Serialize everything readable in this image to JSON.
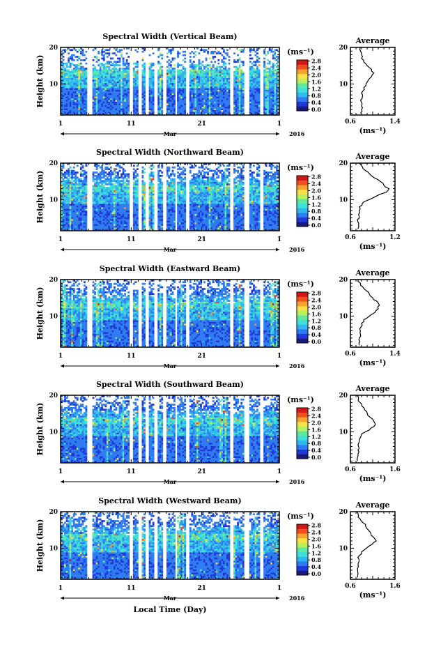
{
  "figure": {
    "xlabel": "Local Time (Day)",
    "colorbar_unit": "(ms⁻¹)",
    "colorbar_ticks": [
      "0.0",
      "0.4",
      "0.8",
      "1.2",
      "1.6",
      "2.0",
      "2.4",
      "2.8"
    ],
    "colorbar_colors": [
      "#1a1a7a",
      "#2038d8",
      "#2f7cf0",
      "#30b8f0",
      "#40e0d8",
      "#60e8a0",
      "#b8f060",
      "#f8e048",
      "#f8a030",
      "#f05020",
      "#d01818"
    ],
    "main_y_ticks": [
      "10",
      "20"
    ],
    "main_x_ticks": [
      "1",
      "11",
      "21",
      "1"
    ],
    "month_label": "Mar",
    "year_label": "2016",
    "avg_title": "Average",
    "avg_xlabel": "(ms⁻¹)",
    "ylabel": "Height (km)"
  },
  "chart_data": [
    {
      "type": "heatmap",
      "title": "Spectral Width (Vertical Beam)",
      "ylabel": "Height (km)",
      "ylim": [
        1.5,
        20
      ],
      "xlim": [
        1,
        32
      ],
      "avg_xticks": [
        "0.6",
        "1.4"
      ],
      "avg_xlim": [
        0.6,
        1.4
      ],
      "avg_profile": {
        "height": [
          2,
          3,
          4,
          5,
          6,
          7,
          8,
          9,
          10,
          11,
          12,
          13,
          14,
          15,
          16,
          17,
          18,
          19,
          20
        ],
        "width": [
          0.78,
          0.8,
          0.8,
          0.8,
          0.81,
          0.82,
          0.82,
          0.84,
          0.88,
          0.92,
          0.98,
          1.02,
          0.98,
          0.9,
          0.84,
          0.8,
          0.8,
          0.78,
          0.78
        ]
      }
    },
    {
      "type": "heatmap",
      "title": "Spectral Width (Northward Beam)",
      "ylabel": "Height (km)",
      "ylim": [
        1.5,
        20
      ],
      "xlim": [
        1,
        32
      ],
      "avg_xticks": [
        "0.6",
        "1.2"
      ],
      "avg_xlim": [
        0.6,
        1.2
      ],
      "avg_profile": {
        "height": [
          2,
          3,
          4,
          5,
          6,
          7,
          8,
          9,
          10,
          11,
          12,
          13,
          14,
          15,
          16,
          17,
          18,
          19,
          20
        ],
        "width": [
          0.7,
          0.71,
          0.7,
          0.72,
          0.71,
          0.72,
          0.72,
          0.76,
          0.85,
          0.95,
          1.08,
          1.12,
          1.05,
          1.0,
          0.92,
          0.86,
          0.8,
          0.76,
          0.72
        ]
      }
    },
    {
      "type": "heatmap",
      "title": "Spectral Width (Eastward Beam)",
      "ylabel": "Height (km)",
      "ylim": [
        1.5,
        20
      ],
      "xlim": [
        1,
        32
      ],
      "avg_xticks": [
        "0.6",
        "1.4"
      ],
      "avg_xlim": [
        0.6,
        1.4
      ],
      "avg_profile": {
        "height": [
          2,
          3,
          4,
          5,
          6,
          7,
          8,
          9,
          10,
          11,
          12,
          13,
          14,
          15,
          16,
          17,
          18,
          19,
          20
        ],
        "width": [
          0.76,
          0.77,
          0.76,
          0.78,
          0.78,
          0.79,
          0.8,
          0.84,
          0.94,
          1.04,
          1.1,
          1.12,
          1.08,
          1.0,
          0.94,
          0.88,
          0.82,
          0.78,
          0.74
        ]
      }
    },
    {
      "type": "heatmap",
      "title": "Spectral Width (Southward Beam)",
      "ylabel": "Height (km)",
      "ylim": [
        1.5,
        20
      ],
      "xlim": [
        1,
        32
      ],
      "avg_xticks": [
        "0.6",
        "1.6"
      ],
      "avg_xlim": [
        0.6,
        1.6
      ],
      "avg_profile": {
        "height": [
          2,
          3,
          4,
          5,
          6,
          7,
          8,
          9,
          10,
          11,
          12,
          13,
          14,
          15,
          16,
          17,
          18,
          19,
          20
        ],
        "width": [
          0.76,
          0.76,
          0.77,
          0.77,
          0.78,
          0.79,
          0.8,
          0.84,
          0.94,
          1.06,
          1.16,
          1.12,
          1.04,
          0.98,
          0.92,
          0.86,
          0.82,
          0.78,
          0.75
        ]
      }
    },
    {
      "type": "heatmap",
      "title": "Spectral Width (Westward Beam)",
      "ylabel": "Height (km)",
      "ylim": [
        1.5,
        20
      ],
      "xlim": [
        1,
        32
      ],
      "avg_xticks": [
        "0.6",
        "1.6"
      ],
      "avg_xlim": [
        0.6,
        1.6
      ],
      "avg_profile": {
        "height": [
          2,
          3,
          4,
          5,
          6,
          7,
          8,
          9,
          10,
          11,
          12,
          13,
          14,
          15,
          16,
          17,
          18,
          19,
          20
        ],
        "width": [
          0.76,
          0.77,
          0.76,
          0.78,
          0.78,
          0.79,
          0.8,
          0.85,
          0.96,
          1.08,
          1.18,
          1.12,
          1.06,
          1.0,
          0.94,
          0.88,
          0.82,
          0.78,
          0.74
        ]
      }
    }
  ]
}
